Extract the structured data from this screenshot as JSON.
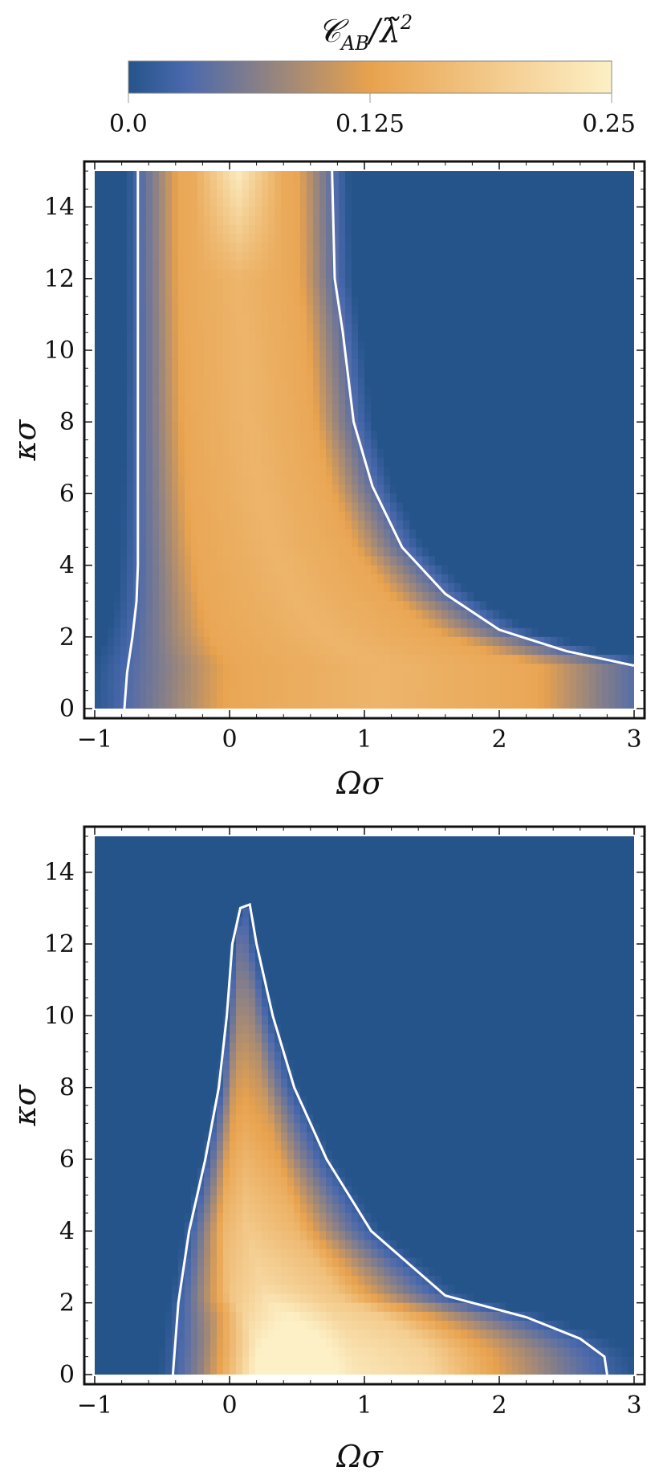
{
  "colorbar": {
    "label": "𝒞_AB/λ̃²",
    "label_main": "𝒞",
    "label_sub": "AB",
    "label_rest": "/λ̃",
    "label_sup": "2",
    "range": [
      0.0,
      0.25
    ],
    "ticks": [
      0.0,
      0.125,
      0.25
    ],
    "tick_labels": [
      "0.0",
      "0.125",
      "0.25"
    ],
    "colormap": [
      "#25548a",
      "#4a69ad",
      "#e8a24e",
      "#fdf0c6"
    ]
  },
  "chart_data": [
    {
      "type": "heatmap",
      "xlabel": "Ωσ",
      "ylabel": "κσ",
      "xlim": [
        -1,
        3
      ],
      "ylim": [
        0,
        15
      ],
      "x_ticks": [
        -1,
        0,
        1,
        2,
        3
      ],
      "x_tick_labels": [
        "−1",
        "0",
        "1",
        "2",
        "3"
      ],
      "y_ticks": [
        0,
        2,
        4,
        6,
        8,
        10,
        12,
        14
      ],
      "y_tick_labels": [
        "0",
        "2",
        "4",
        "6",
        "8",
        "10",
        "12",
        "14"
      ],
      "contour_color": "#ffffff",
      "contour_left": [
        [
          -0.78,
          0
        ],
        [
          -0.76,
          1.0
        ],
        [
          -0.72,
          2.0
        ],
        [
          -0.69,
          3.0
        ],
        [
          -0.68,
          4
        ],
        [
          -0.68,
          8
        ],
        [
          -0.68,
          15
        ]
      ],
      "contour_right": [
        [
          0.76,
          15
        ],
        [
          0.78,
          12
        ],
        [
          0.84,
          10.5
        ],
        [
          0.92,
          8
        ],
        [
          1.06,
          6.2
        ],
        [
          1.28,
          4.5
        ],
        [
          1.6,
          3.2
        ],
        [
          2.0,
          2.2
        ],
        [
          2.5,
          1.6
        ],
        [
          3.0,
          1.2
        ]
      ],
      "max_value": 0.25
    },
    {
      "type": "heatmap",
      "xlabel": "Ωσ",
      "ylabel": "κσ",
      "xlim": [
        -1,
        3
      ],
      "ylim": [
        0,
        15
      ],
      "x_ticks": [
        -1,
        0,
        1,
        2,
        3
      ],
      "x_tick_labels": [
        "−1",
        "0",
        "1",
        "2",
        "3"
      ],
      "y_ticks": [
        0,
        2,
        4,
        6,
        8,
        10,
        12,
        14
      ],
      "y_tick_labels": [
        "0",
        "2",
        "4",
        "6",
        "8",
        "10",
        "12",
        "14"
      ],
      "contour_color": "#ffffff",
      "contour": [
        [
          -0.42,
          0
        ],
        [
          -0.38,
          2.0
        ],
        [
          -0.3,
          4.0
        ],
        [
          -0.18,
          6.0
        ],
        [
          -0.08,
          8.0
        ],
        [
          -0.02,
          10.0
        ],
        [
          0.02,
          12.0
        ],
        [
          0.08,
          13.0
        ],
        [
          0.15,
          13.1
        ],
        [
          0.2,
          12.0
        ],
        [
          0.32,
          10.0
        ],
        [
          0.48,
          8.0
        ],
        [
          0.72,
          6.0
        ],
        [
          1.05,
          4.0
        ],
        [
          1.6,
          2.2
        ],
        [
          2.2,
          1.6
        ],
        [
          2.6,
          1.0
        ],
        [
          2.78,
          0.5
        ],
        [
          2.8,
          0
        ]
      ],
      "peak": [
        0.35,
        0.3
      ],
      "max_value": 0.25
    }
  ]
}
